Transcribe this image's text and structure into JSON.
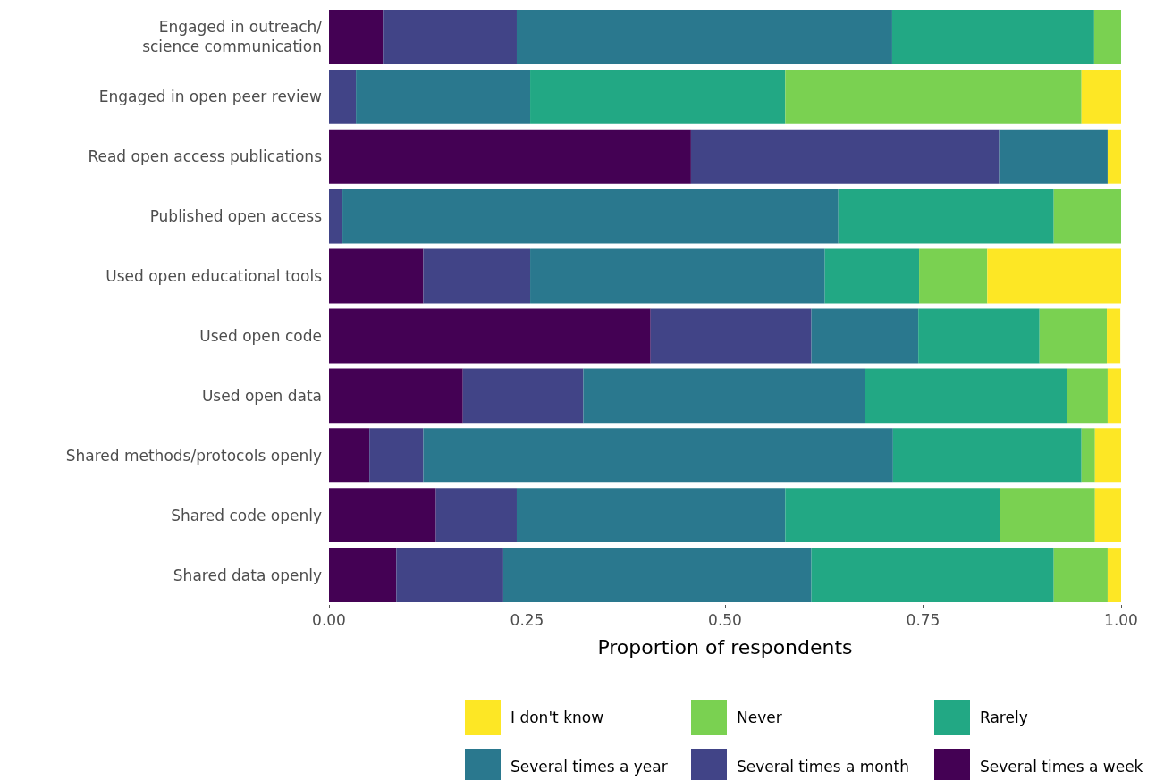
{
  "chart_data": {
    "type": "bar",
    "orientation": "horizontal",
    "stacked": true,
    "xlabel": "Proportion of respondents",
    "xlim": [
      0,
      1
    ],
    "xticks": [
      {
        "value": 0,
        "label": "0.00"
      },
      {
        "value": 0.25,
        "label": "0.25"
      },
      {
        "value": 0.5,
        "label": "0.50"
      },
      {
        "value": 0.75,
        "label": "0.75"
      },
      {
        "value": 1,
        "label": "1.00"
      }
    ],
    "grid": false,
    "legend": "bottom",
    "categories": [
      "Engaged in outreach/\nscience communication",
      "Engaged in open peer review",
      "Read open access publications",
      "Published open access",
      "Used open educational tools",
      "Used open code",
      "Used open data",
      "Shared methods/protocols openly",
      "Shared code openly",
      "Shared data openly"
    ],
    "series": [
      {
        "name": "Several times a week",
        "color": "#440154",
        "values": [
          0.068,
          0,
          0.457,
          0,
          0.119,
          0.406,
          0.169,
          0.051,
          0.135,
          0.085
        ]
      },
      {
        "name": "Several times a month",
        "color": "#414487",
        "values": [
          0.169,
          0.034,
          0.389,
          0.017,
          0.135,
          0.203,
          0.152,
          0.068,
          0.102,
          0.135
        ]
      },
      {
        "name": "Several times a year",
        "color": "#2a788e",
        "values": [
          0.474,
          0.22,
          0.137,
          0.626,
          0.372,
          0.135,
          0.356,
          0.593,
          0.339,
          0.389
        ]
      },
      {
        "name": "Rarely",
        "color": "#22a884",
        "values": [
          0.255,
          0.322,
          0,
          0.272,
          0.119,
          0.153,
          0.255,
          0.238,
          0.271,
          0.306
        ]
      },
      {
        "name": "Never",
        "color": "#7ad151",
        "values": [
          0.034,
          0.374,
          0,
          0.085,
          0.086,
          0.085,
          0.051,
          0.017,
          0.12,
          0.068
        ]
      },
      {
        "name": "I don't know",
        "color": "#fde725",
        "values": [
          0,
          0.051,
          0.017,
          0,
          0.169,
          0.017,
          0.017,
          0.034,
          0.034,
          0.017
        ]
      }
    ]
  }
}
